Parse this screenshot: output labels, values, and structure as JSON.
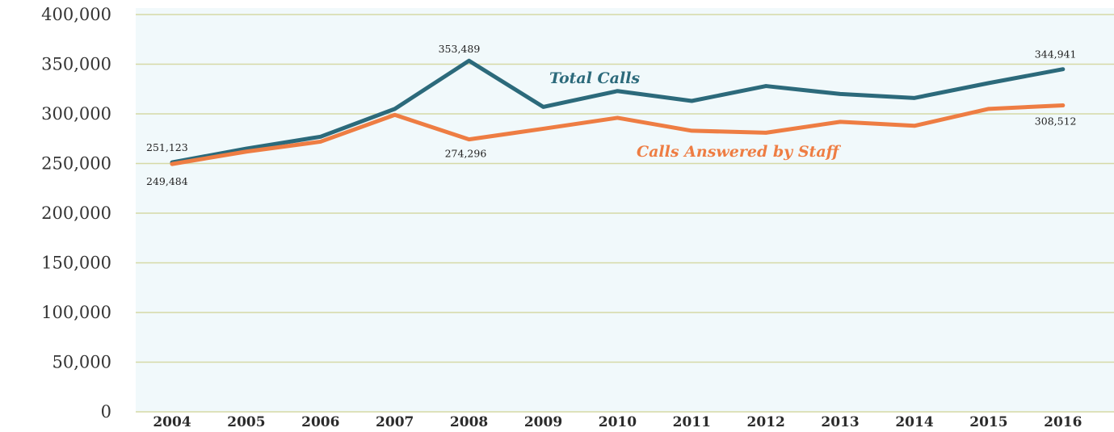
{
  "chart_data": {
    "type": "line",
    "categories": [
      "2004",
      "2005",
      "2006",
      "2007",
      "2008",
      "2009",
      "2010",
      "2011",
      "2012",
      "2013",
      "2014",
      "2015",
      "2016"
    ],
    "series": [
      {
        "name": "Total Calls",
        "color": "#2c6a7b",
        "values": [
          251123,
          265000,
          277000,
          305000,
          353489,
          307000,
          323000,
          313000,
          328000,
          320000,
          316000,
          331000,
          344941
        ]
      },
      {
        "name": "Calls Answered by Staff",
        "color": "#ee7d43",
        "values": [
          249484,
          262000,
          272000,
          299000,
          274296,
          285000,
          296000,
          283000,
          281000,
          292000,
          288000,
          305000,
          308512
        ]
      }
    ],
    "ylim": [
      0,
      400000
    ],
    "yticks": [
      {
        "value": 0,
        "label": "0"
      },
      {
        "value": 50000,
        "label": "50,000"
      },
      {
        "value": 100000,
        "label": "100,000"
      },
      {
        "value": 150000,
        "label": "150,000"
      },
      {
        "value": 200000,
        "label": "200,000"
      },
      {
        "value": 250000,
        "label": "250,000"
      },
      {
        "value": 300000,
        "label": "300,000"
      },
      {
        "value": 350000,
        "label": "350,000"
      },
      {
        "value": 400000,
        "label": "400,000"
      }
    ],
    "data_labels": [
      {
        "series": 0,
        "index": 0,
        "text": "251,123"
      },
      {
        "series": 1,
        "index": 0,
        "text": "249,484"
      },
      {
        "series": 0,
        "index": 4,
        "text": "353,489"
      },
      {
        "series": 1,
        "index": 4,
        "text": "274,296"
      },
      {
        "series": 0,
        "index": 12,
        "text": "344,941"
      },
      {
        "series": 1,
        "index": 12,
        "text": "308,512"
      }
    ],
    "grid": true,
    "gridline_color": "#d6d9a6",
    "plot_background": "#f1f9fb",
    "xlabel": "",
    "ylabel": "",
    "title": ""
  }
}
